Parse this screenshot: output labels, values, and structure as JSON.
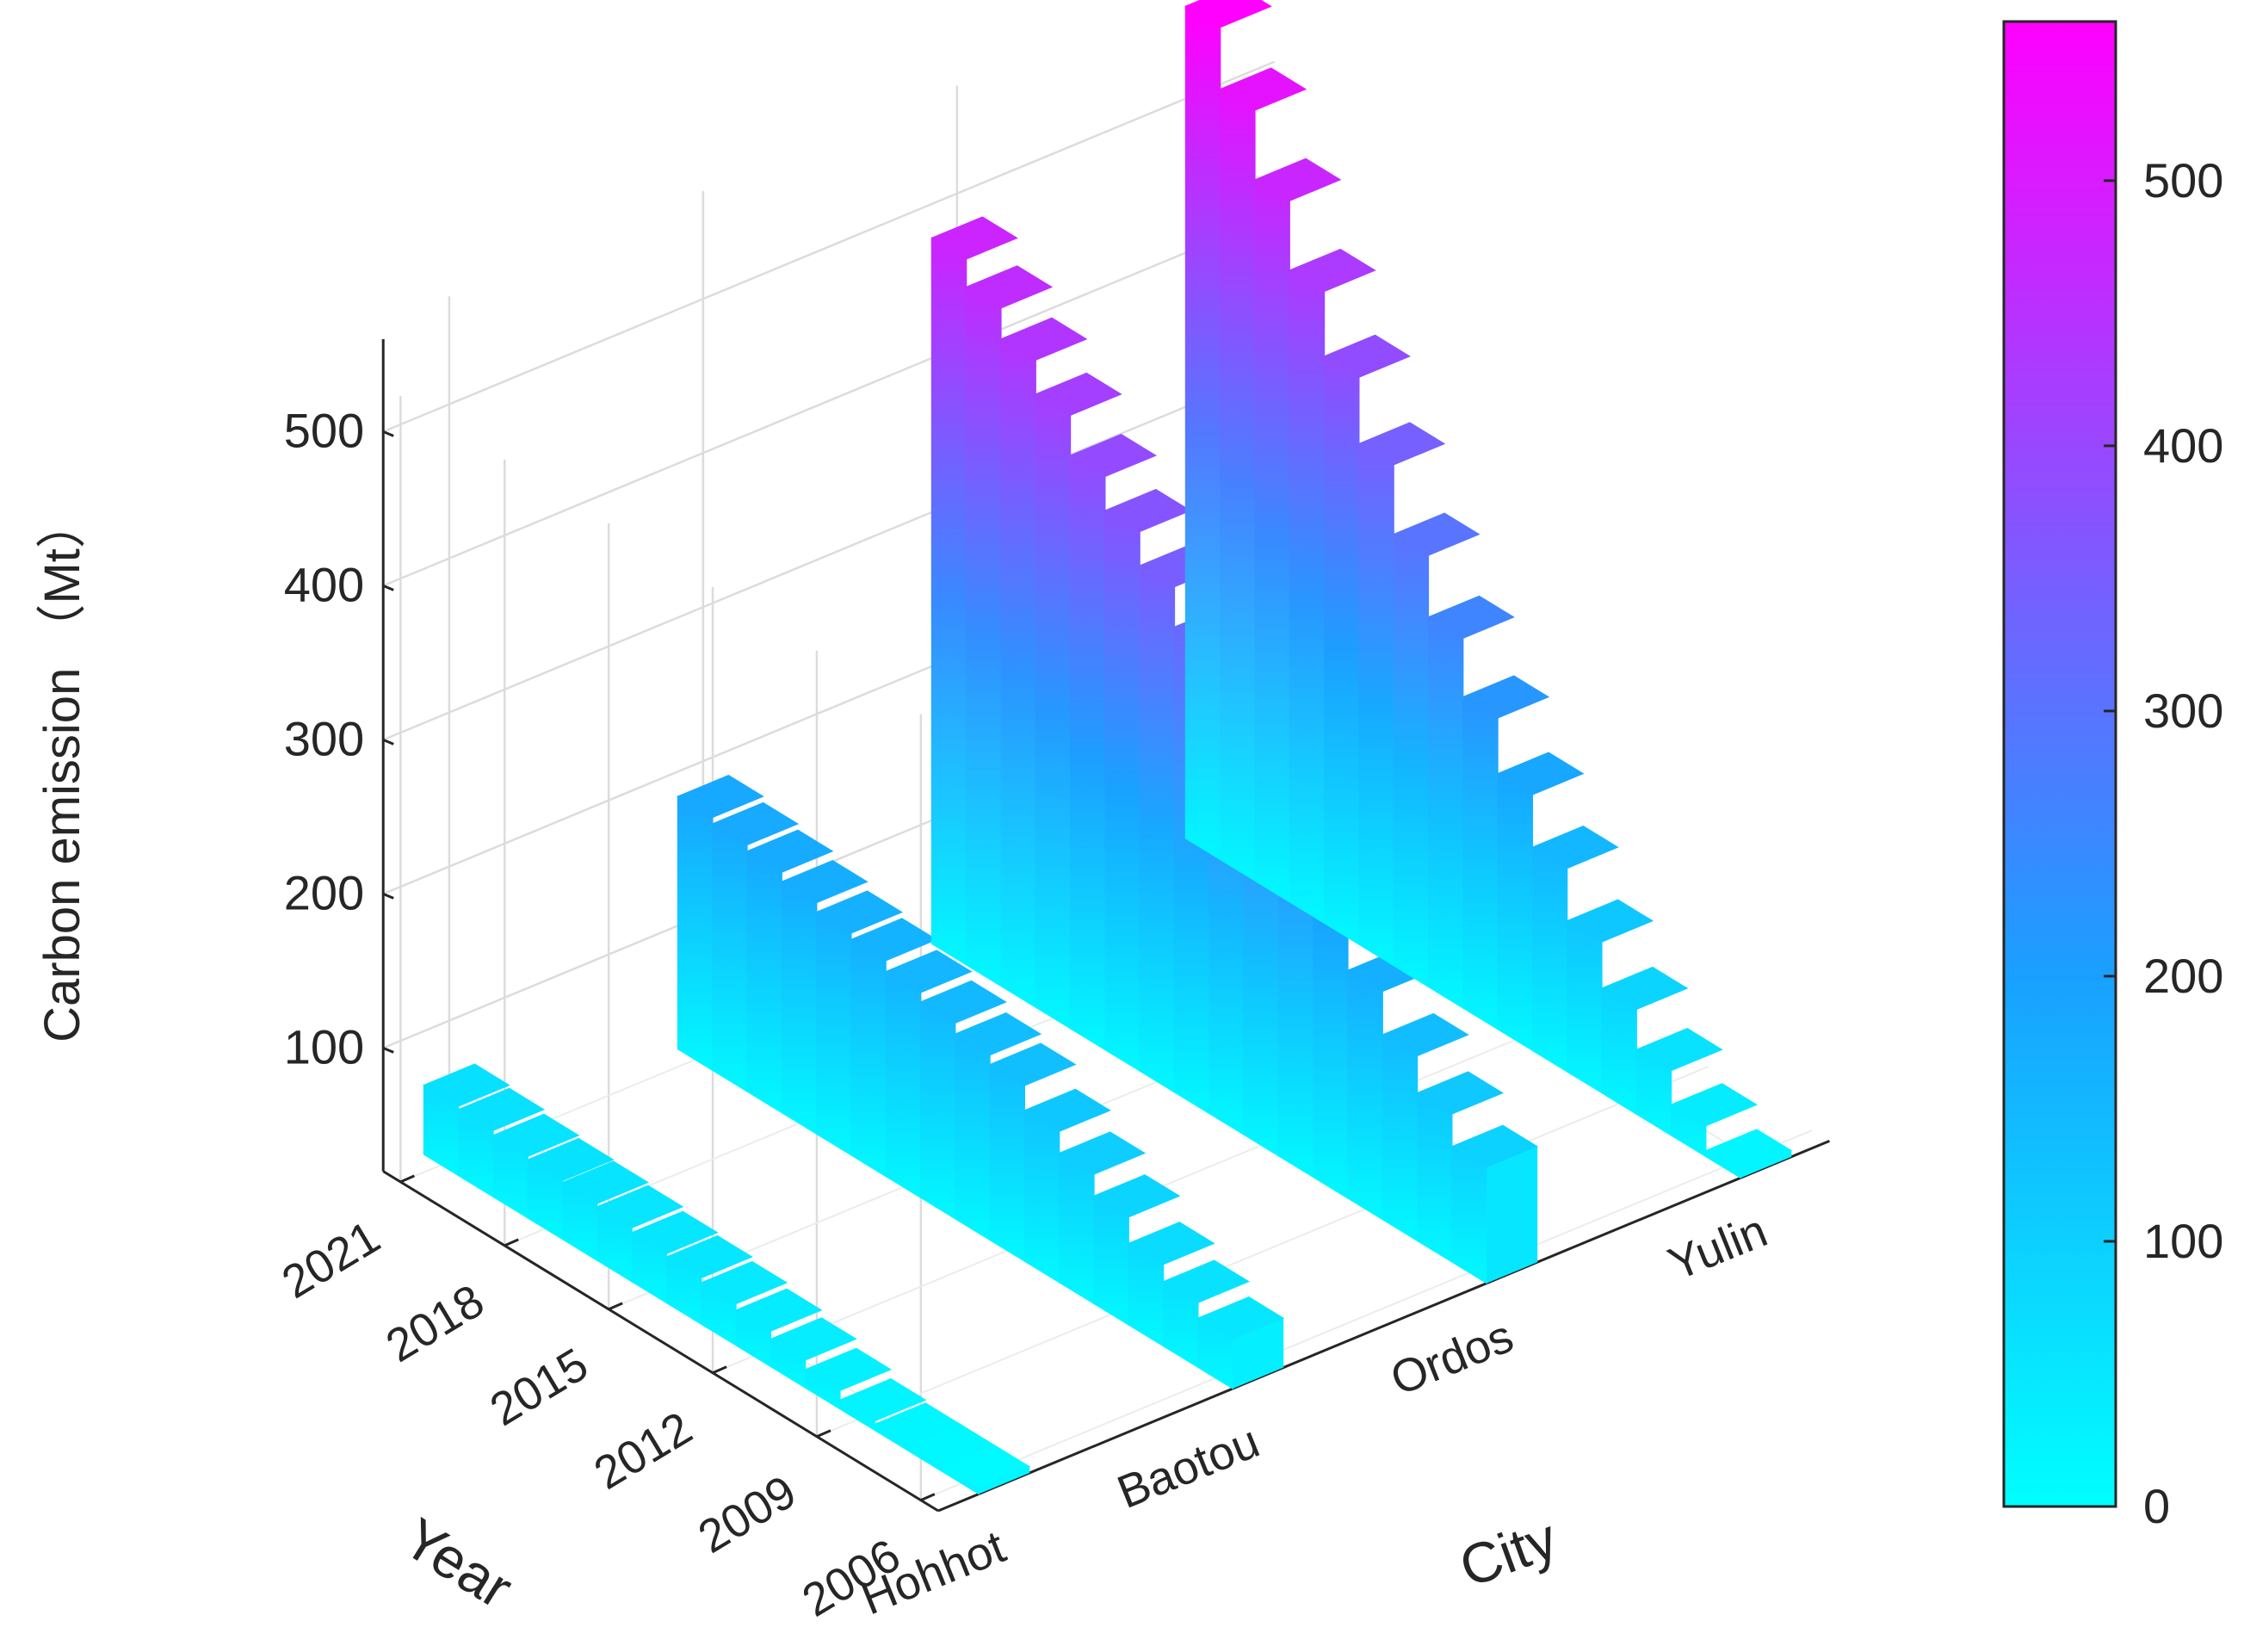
{
  "chart_data": {
    "type": "bar3d-ribbon",
    "zlabel": "Carbon emission （Mt）",
    "xlabel": "Year",
    "ylabel": "City",
    "z_ticks": [
      100,
      200,
      300,
      400,
      500
    ],
    "year_tick_labels": [
      "2021",
      "2018",
      "2015",
      "2012",
      "2009",
      "2006"
    ],
    "city_tick_labels": [
      "Hohhot",
      "Baotou",
      "Ordos",
      "Yulin"
    ],
    "years": [
      2006,
      2007,
      2008,
      2009,
      2010,
      2011,
      2012,
      2013,
      2014,
      2015,
      2016,
      2017,
      2018,
      2019,
      2020,
      2021
    ],
    "zlim": [
      0,
      560
    ],
    "grid": true,
    "series": [
      {
        "name": "Hohhot",
        "values": [
          10,
          14,
          18,
          26,
          32,
          38,
          43,
          47,
          50,
          52,
          55,
          57,
          58,
          60,
          63,
          65
        ]
      },
      {
        "name": "Baotou",
        "values": [
          52,
          62,
          73,
          90,
          104,
          118,
          134,
          140,
          147,
          153,
          160,
          164,
          170,
          176,
          180,
          184
        ]
      },
      {
        "name": "Ordos",
        "values": [
          95,
          116,
          140,
          168,
          200,
          230,
          262,
          292,
          322,
          348,
          370,
          392,
          418,
          440,
          460,
          478
        ]
      },
      {
        "name": "Yulin",
        "values": [
          20,
          40,
          62,
          88,
          118,
          152,
          186,
          222,
          260,
          300,
          345,
          388,
          430,
          475,
          520,
          560
        ]
      }
    ],
    "colorbar": {
      "ticks": [
        0,
        100,
        200,
        300,
        400,
        500
      ],
      "range": [
        0,
        560
      ],
      "colors": [
        "#00ffff",
        "#19a0ff",
        "#ff00ff"
      ],
      "color_stops": [
        0,
        200,
        560
      ]
    }
  }
}
